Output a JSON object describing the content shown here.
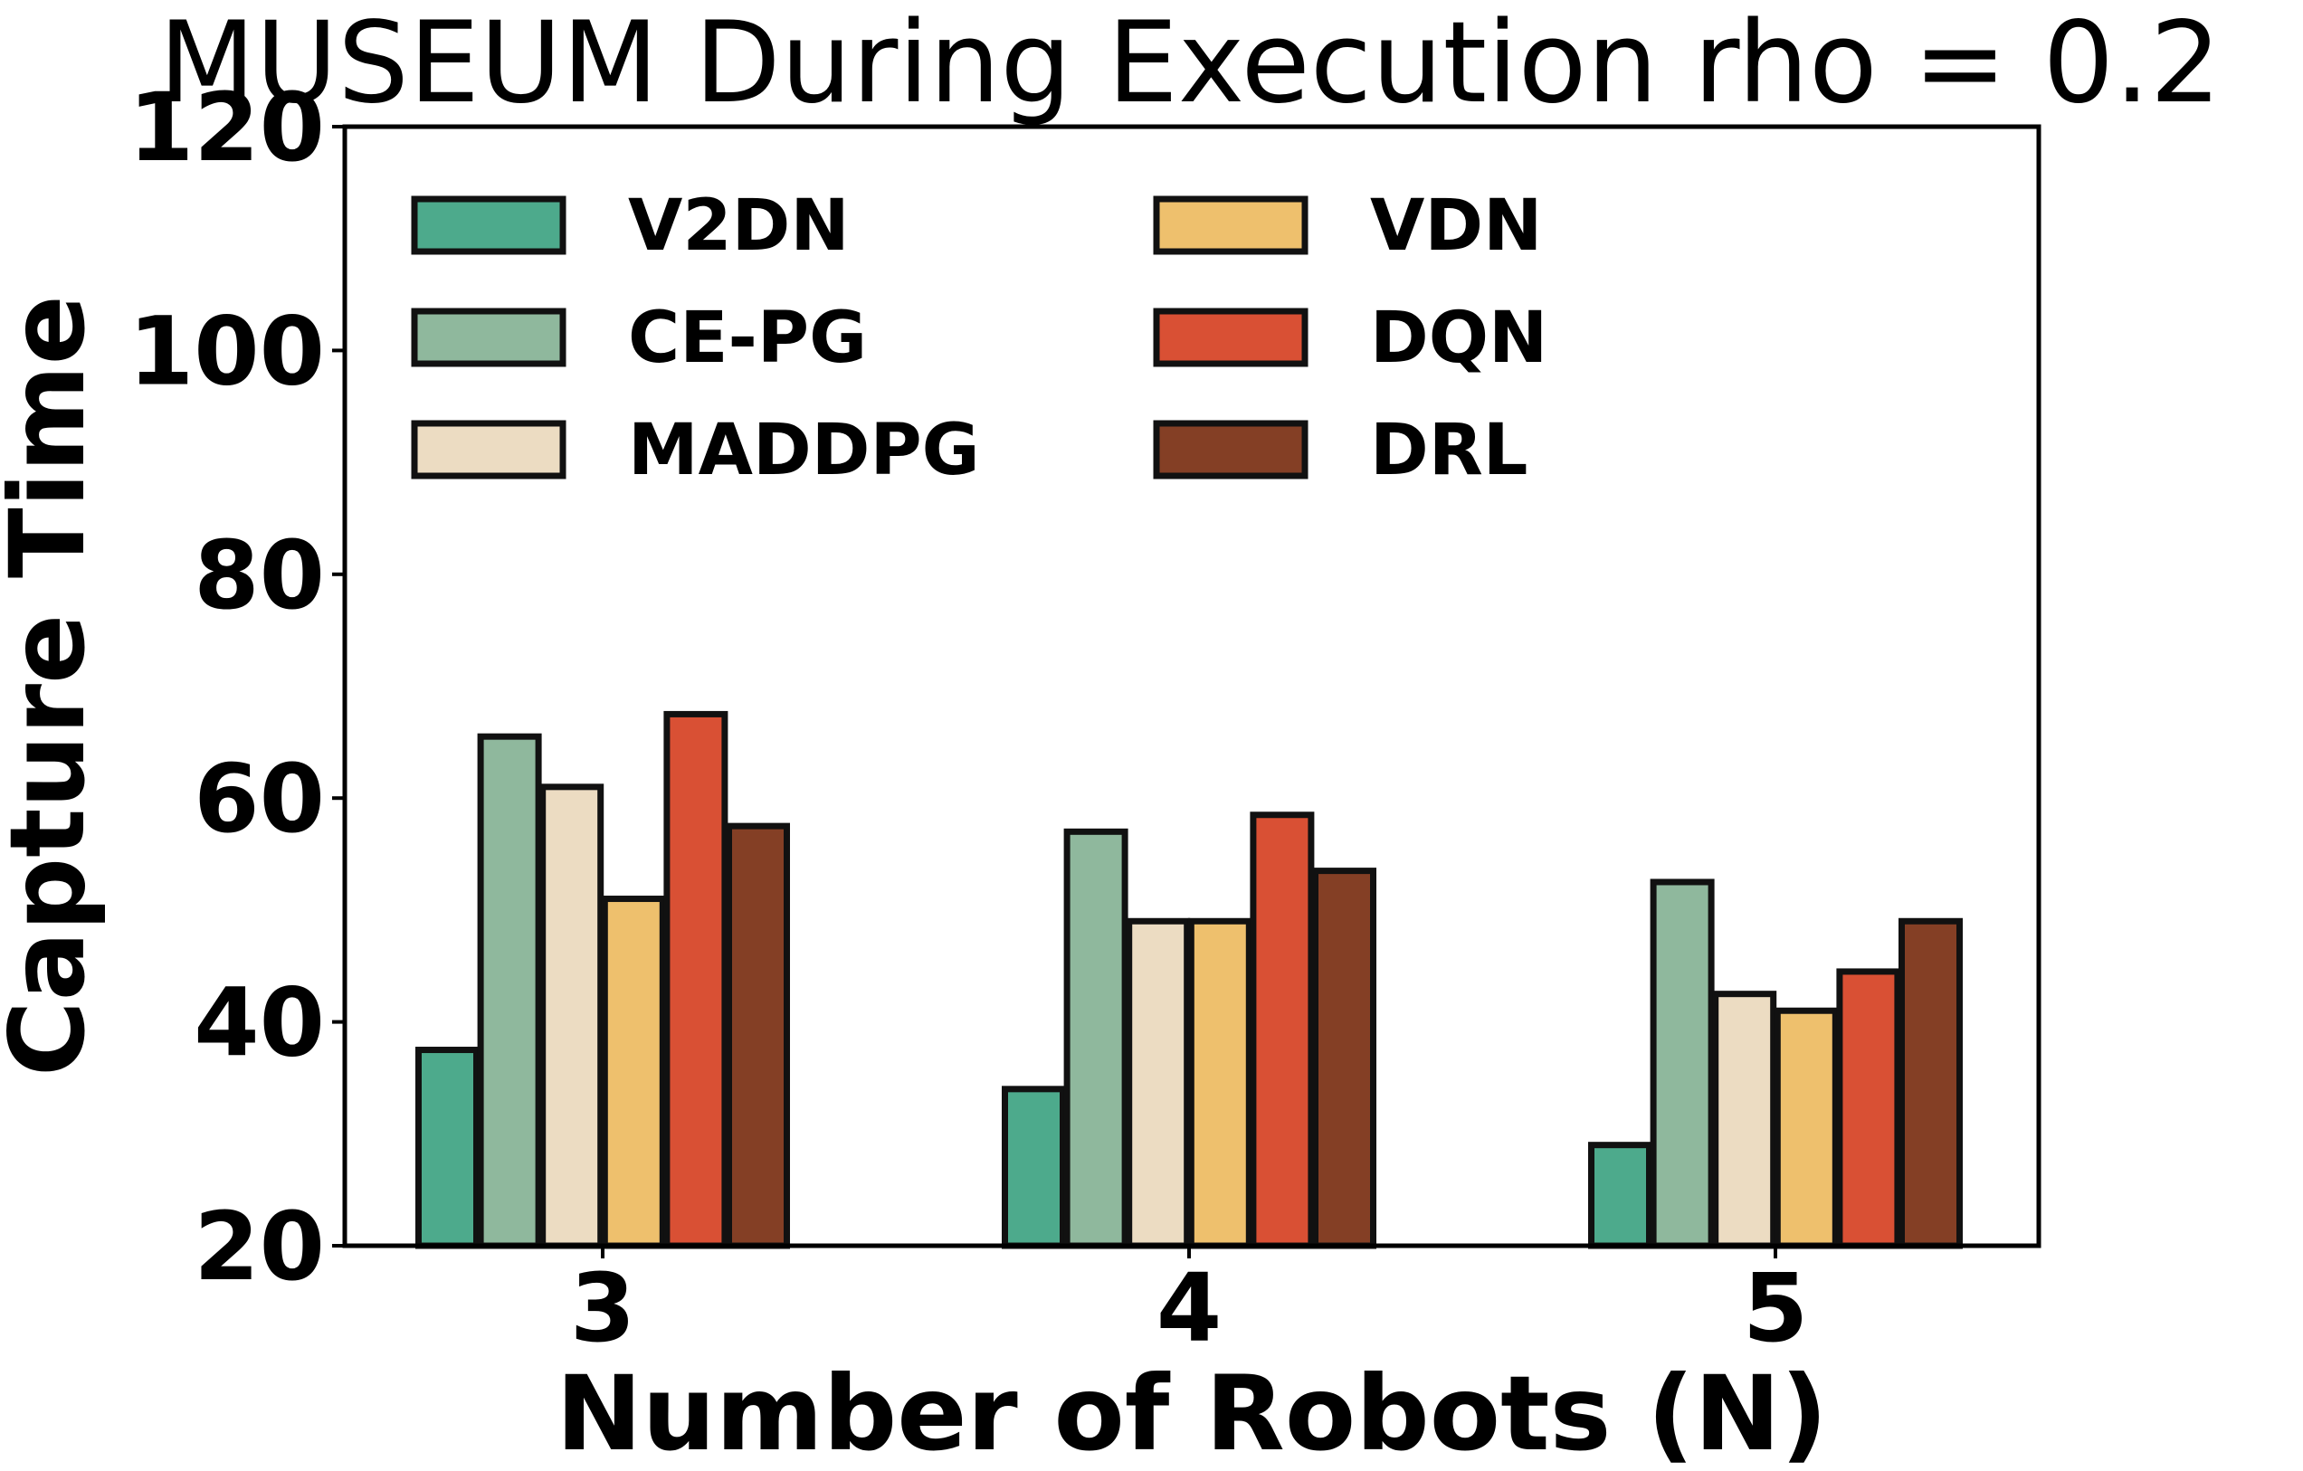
{
  "chart_data": {
    "type": "bar",
    "title": "MUSEUM During Execution rho = 0.2",
    "xlabel": "Number of Robots (N)",
    "ylabel": "Capture Time",
    "categories": [
      "3",
      "4",
      "5"
    ],
    "ylim": [
      20,
      120
    ],
    "yticks": [
      "20",
      "40",
      "60",
      "80",
      "100",
      "120"
    ],
    "legend_position": "upper-left",
    "grid": false,
    "series": [
      {
        "name": "V2DN",
        "color": "#4daa8c",
        "values": [
          37.5,
          34.0,
          29.0
        ]
      },
      {
        "name": "CE-PG",
        "color": "#8fb89d",
        "values": [
          65.5,
          57.0,
          52.5
        ]
      },
      {
        "name": "MADDPG",
        "color": "#ecdcc2",
        "values": [
          61.0,
          49.0,
          42.5
        ]
      },
      {
        "name": "VDN",
        "color": "#eec06d",
        "values": [
          51.0,
          49.0,
          41.0
        ]
      },
      {
        "name": "DQN",
        "color": "#d95034",
        "values": [
          67.5,
          58.5,
          44.5
        ]
      },
      {
        "name": "DRL",
        "color": "#843f25",
        "values": [
          57.5,
          53.5,
          49.0
        ]
      }
    ]
  }
}
